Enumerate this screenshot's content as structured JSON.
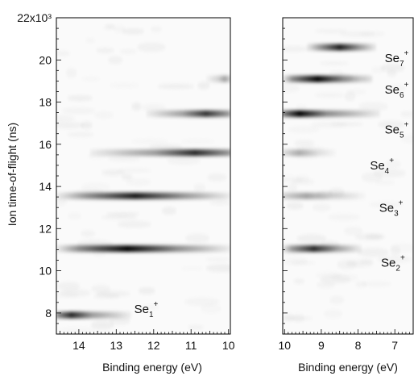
{
  "chart_data": [
    {
      "type": "heatmap",
      "panel": "left",
      "xlabel": "Binding energy (eV)",
      "ylabel": "Ion time-of-flight (ns)",
      "x_reversed": true,
      "xlim": [
        14.6,
        9.95
      ],
      "ylim": [
        7.0,
        22.0
      ],
      "x_ticks": [
        14,
        13,
        12,
        11,
        10
      ],
      "y_ticks": [
        8,
        10,
        12,
        14,
        16,
        18,
        20,
        22
      ],
      "y_tick_labels": [
        "8",
        "10",
        "12",
        "14",
        "16",
        "18",
        "20",
        "22x10³"
      ],
      "grid": false,
      "colormap": "white-to-black (grayscale)",
      "bands": [
        {
          "tof": 7.9,
          "segments": [
            {
              "x_start": 14.6,
              "x_end": 12.6,
              "peak_x": 14.2,
              "intensity": 0.85
            }
          ]
        },
        {
          "tof": 11.05,
          "segments": [
            {
              "x_start": 14.6,
              "x_end": 9.95,
              "peak_x": 12.7,
              "intensity": 1.0
            }
          ]
        },
        {
          "tof": 13.55,
          "segments": [
            {
              "x_start": 14.6,
              "x_end": 9.95,
              "peak_x": 12.5,
              "intensity": 0.9
            }
          ]
        },
        {
          "tof": 15.6,
          "segments": [
            {
              "x_start": 13.7,
              "x_end": 9.95,
              "peak_x": 10.9,
              "intensity": 0.85
            }
          ]
        },
        {
          "tof": 17.45,
          "segments": [
            {
              "x_start": 12.2,
              "x_end": 9.95,
              "peak_x": 10.6,
              "intensity": 0.8
            }
          ]
        },
        {
          "tof": 19.1,
          "segments": [
            {
              "x_start": 10.6,
              "x_end": 9.95,
              "peak_x": 10.1,
              "intensity": 0.35
            }
          ]
        }
      ],
      "annotations": [
        {
          "base": "Se",
          "sub": "1",
          "sup": "+",
          "x": 12.2,
          "y": 8.0
        }
      ]
    },
    {
      "type": "heatmap",
      "panel": "right",
      "xlabel": "Binding energy (eV)",
      "ylabel": "",
      "x_reversed": true,
      "xlim": [
        10.05,
        6.5
      ],
      "ylim": [
        7.0,
        22.0
      ],
      "x_ticks": [
        10,
        9,
        8,
        7
      ],
      "y_ticks": [
        8,
        10,
        12,
        14,
        16,
        18,
        20,
        22
      ],
      "grid": false,
      "colormap": "white-to-black (grayscale)",
      "bands": [
        {
          "tof": 11.05,
          "segments": [
            {
              "x_start": 10.05,
              "x_end": 7.9,
              "peak_x": 9.2,
              "intensity": 0.85
            }
          ]
        },
        {
          "tof": 13.55,
          "segments": [
            {
              "x_start": 10.05,
              "x_end": 7.8,
              "peak_x": 9.4,
              "intensity": 0.35
            }
          ]
        },
        {
          "tof": 15.6,
          "segments": [
            {
              "x_start": 10.05,
              "x_end": 8.6,
              "peak_x": 9.6,
              "intensity": 0.3
            }
          ]
        },
        {
          "tof": 17.45,
          "segments": [
            {
              "x_start": 10.05,
              "x_end": 7.4,
              "peak_x": 9.6,
              "intensity": 1.0
            }
          ]
        },
        {
          "tof": 19.1,
          "segments": [
            {
              "x_start": 10.05,
              "x_end": 7.6,
              "peak_x": 9.1,
              "intensity": 1.0
            }
          ]
        },
        {
          "tof": 20.6,
          "segments": [
            {
              "x_start": 9.4,
              "x_end": 7.5,
              "peak_x": 8.5,
              "intensity": 0.9
            }
          ]
        }
      ],
      "annotations": [
        {
          "base": "Se",
          "sub": "2",
          "sup": "+",
          "x": 7.05,
          "y": 10.2
        },
        {
          "base": "Se",
          "sub": "3",
          "sup": "+",
          "x": 7.1,
          "y": 12.8
        },
        {
          "base": "Se",
          "sub": "4",
          "sup": "+",
          "x": 7.35,
          "y": 14.8
        },
        {
          "base": "Se",
          "sub": "5",
          "sup": "+",
          "x": 6.95,
          "y": 16.5
        },
        {
          "base": "Se",
          "sub": "6",
          "sup": "+",
          "x": 6.95,
          "y": 18.4
        },
        {
          "base": "Se",
          "sub": "7",
          "sup": "+",
          "x": 6.95,
          "y": 19.9
        }
      ]
    }
  ]
}
